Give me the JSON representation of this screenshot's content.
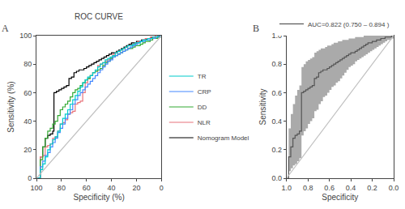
{
  "chart_data": [
    {
      "type": "step",
      "title": "ROC CURVE",
      "x_label": "Specificity (%)",
      "y_label": "Sensitivity (%)",
      "annotations": [
        "A"
      ],
      "xlim": [
        100,
        0
      ],
      "ylim": [
        0,
        100
      ],
      "xticks": [
        100,
        80,
        60,
        40,
        20,
        0
      ],
      "yticks": [
        0,
        20,
        40,
        60,
        80,
        100
      ],
      "grid": false,
      "legend": "right",
      "series": [
        {
          "name": "Nomogram Model",
          "color": "#000000",
          "x": [
            100,
            97,
            95,
            93,
            91,
            89,
            87,
            86,
            84,
            82,
            80,
            78,
            76,
            74,
            72,
            70,
            68,
            66,
            64,
            62,
            60,
            58,
            56,
            54,
            52,
            50,
            48,
            46,
            44,
            42,
            40,
            38,
            36,
            34,
            32,
            30,
            28,
            26,
            24,
            22,
            20,
            18,
            16,
            14,
            12,
            10,
            8,
            6,
            4,
            2,
            0
          ],
          "values": [
            0,
            15,
            22,
            28,
            30,
            31,
            33,
            60,
            61,
            62,
            63,
            64,
            65,
            70,
            71,
            74,
            75,
            76,
            76,
            77,
            78,
            79,
            80,
            81,
            82,
            83,
            84,
            85,
            86,
            87,
            88,
            88,
            89,
            90,
            91,
            92,
            93,
            94,
            95,
            95,
            96,
            96,
            97,
            97,
            98,
            98,
            99,
            99,
            99,
            100,
            100
          ]
        },
        {
          "name": "NLR",
          "color": "#E8737A",
          "x": [
            100,
            97,
            95,
            93,
            91,
            89,
            87,
            85,
            83,
            81,
            79,
            77,
            75,
            73,
            71,
            69,
            67,
            65,
            63,
            61,
            59,
            57,
            55,
            53,
            51,
            49,
            47,
            45,
            43,
            41,
            39,
            37,
            35,
            33,
            31,
            29,
            27,
            25,
            23,
            21,
            19,
            17,
            15,
            13,
            11,
            9,
            7,
            5,
            3,
            1,
            0
          ],
          "values": [
            0,
            15,
            16,
            22,
            23,
            24,
            28,
            29,
            33,
            38,
            39,
            41,
            45,
            46,
            47,
            52,
            53,
            54,
            60,
            67,
            70,
            72,
            74,
            75,
            79,
            80,
            81,
            82,
            83,
            84,
            87,
            88,
            89,
            90,
            91,
            92,
            93,
            93,
            94,
            95,
            96,
            96,
            97,
            98,
            98,
            99,
            99,
            100,
            100,
            100,
            100
          ]
        },
        {
          "name": "DD",
          "color": "#33AA33",
          "x": [
            100,
            97,
            95,
            93,
            91,
            89,
            87,
            85,
            83,
            81,
            79,
            77,
            75,
            73,
            71,
            69,
            67,
            65,
            63,
            61,
            59,
            57,
            55,
            53,
            51,
            49,
            47,
            45,
            43,
            41,
            39,
            37,
            35,
            33,
            31,
            29,
            27,
            25,
            23,
            21,
            19,
            17,
            15,
            13,
            11,
            9,
            7,
            5,
            3,
            1,
            0
          ],
          "values": [
            0,
            13,
            22,
            28,
            33,
            35,
            38,
            40,
            44,
            48,
            50,
            52,
            54,
            57,
            60,
            62,
            63,
            65,
            67,
            69,
            70,
            72,
            74,
            75,
            76,
            77,
            79,
            81,
            82,
            84,
            85,
            86,
            87,
            88,
            89,
            90,
            91,
            91,
            92,
            93,
            93,
            94,
            95,
            96,
            96,
            97,
            98,
            98,
            99,
            99,
            100
          ]
        },
        {
          "name": "CRP",
          "color": "#4488FF",
          "x": [
            100,
            97,
            95,
            93,
            91,
            89,
            87,
            85,
            83,
            81,
            79,
            77,
            75,
            73,
            71,
            69,
            67,
            65,
            63,
            61,
            59,
            57,
            55,
            53,
            51,
            49,
            47,
            45,
            43,
            41,
            39,
            37,
            35,
            33,
            31,
            29,
            27,
            25,
            23,
            21,
            19,
            17,
            15,
            13,
            11,
            9,
            7,
            5,
            3,
            1,
            0
          ],
          "values": [
            0,
            8,
            12,
            16,
            18,
            22,
            25,
            28,
            32,
            35,
            38,
            42,
            45,
            48,
            52,
            55,
            58,
            60,
            62,
            64,
            66,
            68,
            70,
            72,
            74,
            76,
            78,
            80,
            82,
            83,
            85,
            86,
            87,
            88,
            89,
            90,
            91,
            92,
            93,
            94,
            95,
            96,
            96,
            97,
            97,
            98,
            98,
            99,
            99,
            100,
            100
          ]
        },
        {
          "name": "TR",
          "color": "#00CCCC",
          "x": [
            100,
            97,
            95,
            93,
            91,
            89,
            87,
            85,
            83,
            81,
            79,
            77,
            75,
            73,
            71,
            69,
            67,
            65,
            63,
            61,
            59,
            57,
            55,
            53,
            51,
            49,
            47,
            45,
            43,
            41,
            39,
            37,
            35,
            33,
            31,
            29,
            27,
            25,
            23,
            21,
            19,
            17,
            15,
            13,
            11,
            9,
            7,
            5,
            3,
            1,
            0
          ],
          "values": [
            0,
            6,
            10,
            15,
            20,
            24,
            27,
            29,
            33,
            38,
            42,
            45,
            48,
            52,
            55,
            58,
            61,
            64,
            67,
            69,
            71,
            72,
            74,
            76,
            78,
            80,
            81,
            83,
            84,
            85,
            86,
            88,
            89,
            90,
            91,
            92,
            93,
            93,
            94,
            95,
            95,
            96,
            97,
            97,
            98,
            98,
            99,
            99,
            100,
            100,
            100
          ]
        },
        {
          "type": "line",
          "color": "#C0C0C0",
          "x": [
            100,
            0
          ],
          "values": [
            0,
            100
          ]
        }
      ]
    },
    {
      "type": "step",
      "x_label": "Specificity",
      "y_label": "Sensitivity",
      "annotations": [
        "B"
      ],
      "xlim": [
        1.0,
        0.0
      ],
      "ylim": [
        0.0,
        1.0
      ],
      "xticks": [
        {
          "value": 1.0,
          "label": "1.0"
        },
        0.8,
        0.6,
        0.4,
        0.2,
        {
          "value": 0.0,
          "label": "0.0"
        }
      ],
      "yticks": [
        {
          "value": 0.0,
          "label": "0.0"
        },
        0.2,
        0.4,
        0.6,
        0.8,
        {
          "value": 1.0,
          "label": "1.0"
        }
      ],
      "grid": false,
      "legend": "top",
      "series": [
        {
          "type": "band",
          "color": "#AAAAAA",
          "x": [
            1.0,
            0.98,
            0.96,
            0.94,
            0.92,
            0.9,
            0.88,
            0.86,
            0.84,
            0.82,
            0.8,
            0.78,
            0.76,
            0.74,
            0.72,
            0.7,
            0.68,
            0.66,
            0.64,
            0.62,
            0.6,
            0.58,
            0.56,
            0.54,
            0.52,
            0.5,
            0.48,
            0.46,
            0.44,
            0.42,
            0.4,
            0.38,
            0.36,
            0.34,
            0.32,
            0.3,
            0.28,
            0.26,
            0.24,
            0.22,
            0.2,
            0.18,
            0.16,
            0.14,
            0.12,
            0.1,
            0.08,
            0.06,
            0.04,
            0.02,
            0.0
          ],
          "lower": [
            0.0,
            0.05,
            0.07,
            0.09,
            0.1,
            0.12,
            0.14,
            0.3,
            0.33,
            0.35,
            0.38,
            0.4,
            0.42,
            0.47,
            0.48,
            0.52,
            0.54,
            0.57,
            0.58,
            0.6,
            0.62,
            0.64,
            0.65,
            0.67,
            0.68,
            0.7,
            0.72,
            0.74,
            0.76,
            0.78,
            0.79,
            0.8,
            0.82,
            0.83,
            0.84,
            0.85,
            0.86,
            0.87,
            0.88,
            0.89,
            0.9,
            0.91,
            0.92,
            0.93,
            0.94,
            0.95,
            0.96,
            0.97,
            0.97,
            0.98,
            1.0
          ],
          "upper": [
            0.0,
            0.35,
            0.45,
            0.52,
            0.58,
            0.62,
            0.65,
            0.78,
            0.8,
            0.82,
            0.83,
            0.84,
            0.85,
            0.88,
            0.89,
            0.9,
            0.91,
            0.91,
            0.92,
            0.93,
            0.93,
            0.94,
            0.95,
            0.95,
            0.96,
            0.96,
            0.97,
            0.97,
            0.97,
            0.98,
            0.98,
            0.98,
            0.99,
            0.99,
            0.99,
            0.99,
            1.0,
            1.0,
            1.0,
            1.0,
            1.0,
            1.0,
            1.0,
            1.0,
            1.0,
            1.0,
            1.0,
            1.0,
            1.0,
            1.0,
            1.0
          ]
        },
        {
          "name": "AUC=0.822 (0.750 – 0.894 )",
          "color": "#555555",
          "x": [
            1.0,
            0.98,
            0.96,
            0.94,
            0.92,
            0.9,
            0.88,
            0.86,
            0.84,
            0.82,
            0.8,
            0.78,
            0.76,
            0.74,
            0.72,
            0.7,
            0.68,
            0.66,
            0.64,
            0.62,
            0.6,
            0.58,
            0.56,
            0.54,
            0.52,
            0.5,
            0.48,
            0.46,
            0.44,
            0.42,
            0.4,
            0.38,
            0.36,
            0.34,
            0.32,
            0.3,
            0.28,
            0.26,
            0.24,
            0.22,
            0.2,
            0.18,
            0.16,
            0.14,
            0.12,
            0.1,
            0.08,
            0.06,
            0.04,
            0.02,
            0.0
          ],
          "values": [
            0.0,
            0.15,
            0.22,
            0.28,
            0.3,
            0.31,
            0.33,
            0.6,
            0.61,
            0.62,
            0.63,
            0.64,
            0.65,
            0.7,
            0.71,
            0.74,
            0.75,
            0.76,
            0.76,
            0.77,
            0.78,
            0.79,
            0.8,
            0.81,
            0.82,
            0.83,
            0.84,
            0.85,
            0.86,
            0.87,
            0.88,
            0.88,
            0.89,
            0.9,
            0.91,
            0.92,
            0.93,
            0.94,
            0.95,
            0.95,
            0.96,
            0.96,
            0.97,
            0.97,
            0.98,
            0.98,
            0.99,
            0.99,
            0.99,
            1.0,
            1.0
          ]
        },
        {
          "type": "line",
          "color": "#C0C0C0",
          "x": [
            1,
            0
          ],
          "values": [
            0,
            1
          ]
        }
      ]
    }
  ]
}
